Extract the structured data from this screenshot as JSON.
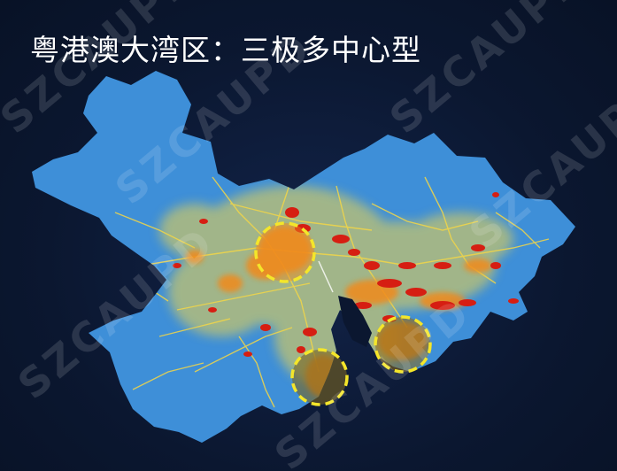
{
  "title": "粤港澳大湾区：三极多中心型",
  "watermark": "SZCAUPD",
  "colors": {
    "background": "#0b1730",
    "land": "#3e8fd8",
    "density_low": "#f2d648",
    "density_mid": "#f08a1c",
    "density_high": "#d61e12",
    "circle_outline": "#f4e62a"
  },
  "centers": [
    "guangzhou-foshan-center",
    "shenzhen-hongkong-center",
    "zhuhai-macau-center"
  ]
}
